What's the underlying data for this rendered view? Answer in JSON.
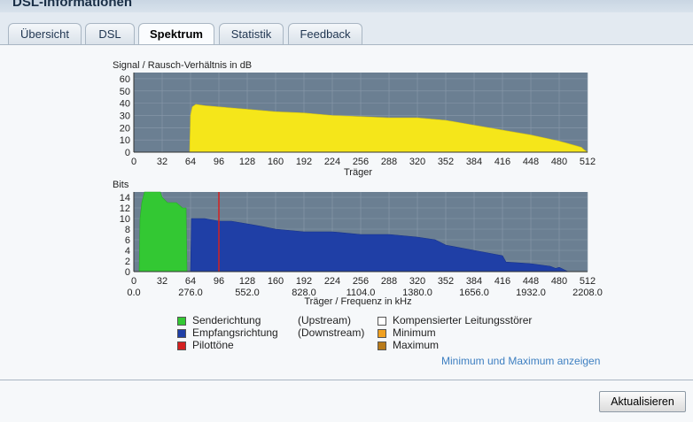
{
  "window": {
    "title": "DSL-Informationen"
  },
  "tabs": [
    {
      "label": "Übersicht",
      "active": false
    },
    {
      "label": "DSL",
      "active": false
    },
    {
      "label": "Spektrum",
      "active": true
    },
    {
      "label": "Statistik",
      "active": false
    },
    {
      "label": "Feedback",
      "active": false
    }
  ],
  "snr_chart": {
    "title": "Signal / Rausch-Verhältnis in dB",
    "xlabel": "Träger",
    "y_ticks": [
      "0",
      "10",
      "20",
      "30",
      "40",
      "50",
      "60"
    ],
    "x_ticks": [
      "0",
      "32",
      "64",
      "96",
      "128",
      "160",
      "192",
      "224",
      "256",
      "288",
      "320",
      "352",
      "384",
      "416",
      "448",
      "480",
      "512"
    ]
  },
  "bits_chart": {
    "title": "Bits",
    "xlabel": "Träger / Frequenz in kHz",
    "y_ticks": [
      "0",
      "2",
      "4",
      "6",
      "8",
      "10",
      "12",
      "14"
    ],
    "x_ticks": [
      "0",
      "32",
      "64",
      "96",
      "128",
      "160",
      "192",
      "224",
      "256",
      "288",
      "320",
      "352",
      "384",
      "416",
      "448",
      "480",
      "512"
    ],
    "freq_ticks": [
      "0.0",
      "276.0",
      "552.0",
      "828.0",
      "1104.0",
      "1380.0",
      "1656.0",
      "1932.0",
      "2208.0"
    ]
  },
  "legend": {
    "upstream_label": "Senderichtung",
    "upstream_dir": "(Upstream)",
    "downstream_label": "Empfangsrichtung",
    "downstream_dir": "(Downstream)",
    "pilot_label": "Pilottöne",
    "comp_label": "Kompensierter Leitungsstörer",
    "min_label": "Minimum",
    "max_label": "Maximum"
  },
  "colors": {
    "upstream": "#33c833",
    "downstream": "#1f3fa6",
    "pilot": "#d42020",
    "comp": "#ffffff",
    "min": "#f0a020",
    "max": "#b87a1a",
    "snr": "#f5e61a",
    "plot_bg": "#6b7f92"
  },
  "show_minmax_link": "Minimum und Maximum anzeigen",
  "refresh_button": "Aktualisieren",
  "chart_data": [
    {
      "type": "area",
      "title": "Signal / Rausch-Verhältnis in dB",
      "xlabel": "Träger",
      "ylabel": "",
      "xlim": [
        0,
        512
      ],
      "ylim": [
        0,
        65
      ],
      "series": [
        {
          "x": [
            0,
            63,
            64,
            66,
            70,
            80,
            96,
            128,
            160,
            192,
            224,
            256,
            288,
            320,
            352,
            384,
            416,
            448,
            480,
            500,
            505,
            508,
            510,
            512
          ],
          "y": [
            0,
            0,
            30,
            37,
            39,
            38,
            37,
            35,
            33,
            32,
            30,
            29,
            28,
            28,
            26,
            22,
            18,
            14,
            9,
            5,
            4,
            2,
            1,
            0
          ]
        }
      ]
    },
    {
      "type": "area",
      "title": "Bits",
      "xlabel": "Träger / Frequenz in kHz",
      "ylabel": "",
      "xlim": [
        0,
        512
      ],
      "ylim": [
        0,
        15
      ],
      "series": [
        {
          "name": "Senderichtung (Upstream)",
          "x": [
            6,
            7,
            9,
            12,
            30,
            32,
            38,
            48,
            55,
            59,
            60
          ],
          "y": [
            0,
            10,
            13,
            15,
            15,
            14,
            13,
            13,
            12,
            12,
            0
          ]
        },
        {
          "name": "Empfangsrichtung (Downstream)",
          "x": [
            64,
            65,
            80,
            96,
            110,
            128,
            145,
            160,
            192,
            224,
            256,
            288,
            320,
            340,
            352,
            384,
            400,
            416,
            420,
            448,
            470,
            476,
            480,
            485,
            490
          ],
          "y": [
            0,
            10,
            10,
            9.5,
            9.5,
            9,
            8.5,
            8,
            7.5,
            7.5,
            7,
            7,
            6.5,
            6,
            5,
            4,
            3.5,
            3,
            1.8,
            1.5,
            1,
            0.6,
            0.8,
            0.4,
            0
          ]
        },
        {
          "name": "Pilottöne",
          "x": [
            96
          ],
          "y": [
            15
          ]
        }
      ]
    }
  ]
}
